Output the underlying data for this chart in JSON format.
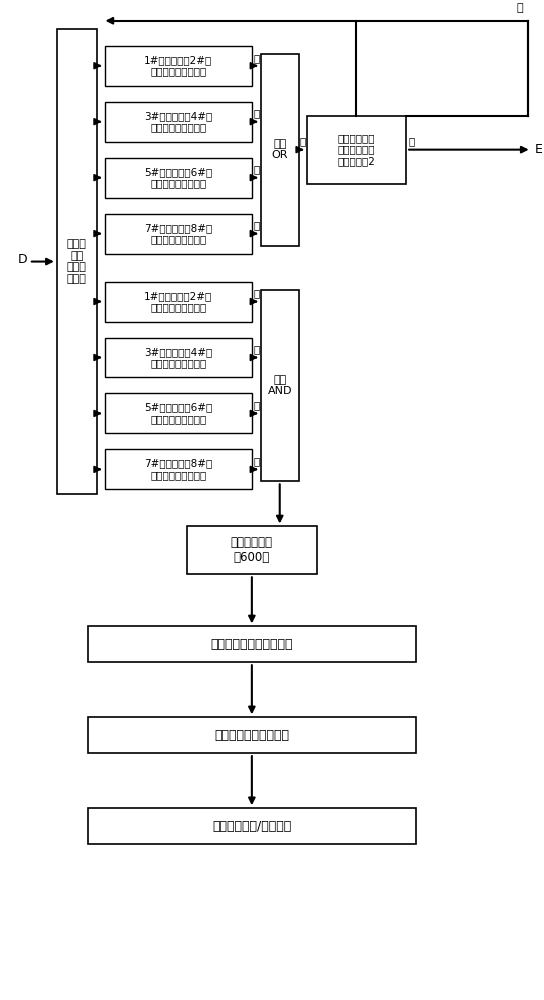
{
  "bg_color": "#ffffff",
  "line_color": "#000000",
  "condition_boxes_upper": [
    "1#启动信号和2#启\n动信号是否同时存在",
    "3#启动信号和4#启\n动信号是否同时存在",
    "5#启动信号和6#启\n动信号是否同时存在",
    "7#启动信号和8#启\n动信号是否同时存在"
  ],
  "condition_boxes_lower": [
    "1#启动信号和2#启\n动信号是否同时存在",
    "3#启动信号和4#启\n动信号是否同时存在",
    "5#启动信号和6#启\n动信号是否同时存在",
    "7#启动信号和8#启\n动信号是否同时存在"
  ],
  "or_gate_label": "或门\nOR",
  "and_gate_label": "与门\nAND",
  "condition_check_label": "油机并机输出\n断路器合闸数\n量大于等于2",
  "timer_label": "超过延时设定\n值600秒",
  "all_open_label": "所有发电机输出开关分闸",
  "cool_stop_label": "发电机组冷却停机运行",
  "return_label": "系统回到自动/备用模式",
  "left_label": "发电机\n组加\n（卸）\n载模式",
  "input_label": "D",
  "yes_upper": "是",
  "no_lower": "否",
  "yes_or": "是",
  "yes_out": "是",
  "no_feedback": "否",
  "E_label": "E"
}
